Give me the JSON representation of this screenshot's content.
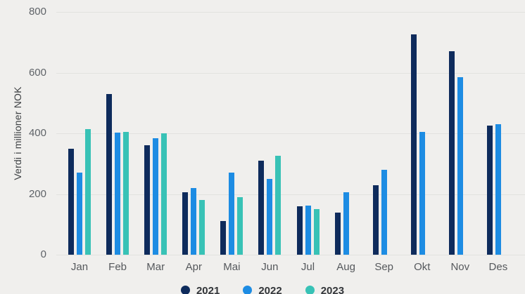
{
  "colors": {
    "background": "#f0efed",
    "gridline": "#e2e2df",
    "axis_text": "#5f6368",
    "series_navy": "#0e2b5c",
    "series_blue": "#1d8ce3",
    "series_teal": "#38c2b6"
  },
  "chart_data": {
    "type": "bar",
    "title": "",
    "xlabel": "",
    "ylabel": "Verdi i millioner NOK",
    "ylim": [
      0,
      800
    ],
    "yticks": [
      0,
      200,
      400,
      600,
      800
    ],
    "grid": true,
    "legend_position": "bottom",
    "categories": [
      "Jan",
      "Feb",
      "Mar",
      "Apr",
      "Mai",
      "Jun",
      "Jul",
      "Aug",
      "Sep",
      "Okt",
      "Nov",
      "Des"
    ],
    "series": [
      {
        "name": "2021",
        "color": "#0e2b5c",
        "values": [
          350,
          530,
          360,
          205,
          110,
          310,
          160,
          140,
          230,
          725,
          670,
          425
        ]
      },
      {
        "name": "2022",
        "color": "#1d8ce3",
        "values": [
          270,
          403,
          385,
          220,
          270,
          250,
          162,
          205,
          280,
          405,
          585,
          430
        ]
      },
      {
        "name": "2023",
        "color": "#38c2b6",
        "values": [
          415,
          405,
          400,
          180,
          190,
          325,
          150,
          null,
          null,
          null,
          null,
          null
        ]
      }
    ]
  }
}
